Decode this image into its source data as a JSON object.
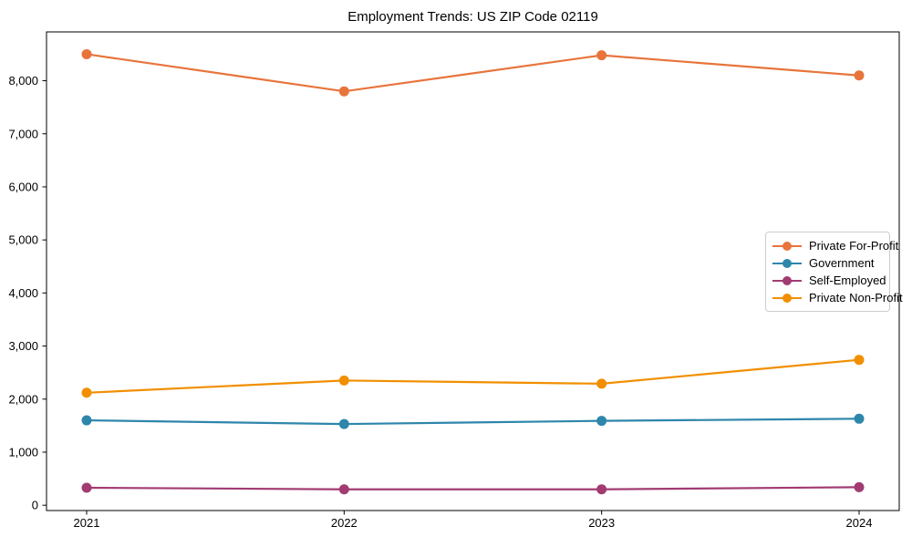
{
  "chart_data": {
    "type": "line",
    "title": "Employment Trends: US ZIP Code 02119",
    "xlabel": "",
    "ylabel": "",
    "categories": [
      "2021",
      "2022",
      "2023",
      "2024"
    ],
    "series": [
      {
        "name": "Private For-Profit",
        "color": "#E8743B",
        "values": [
          8500,
          7800,
          8480,
          8100
        ]
      },
      {
        "name": "Government",
        "color": "#2E86AB",
        "values": [
          1600,
          1530,
          1590,
          1630
        ]
      },
      {
        "name": "Self-Employed",
        "color": "#A23B72",
        "values": [
          330,
          300,
          300,
          340
        ]
      },
      {
        "name": "Private Non-Profit",
        "color": "#F18F01",
        "values": [
          2120,
          2350,
          2290,
          2740
        ]
      }
    ],
    "yticks": [
      {
        "value": 0,
        "label": "0"
      },
      {
        "value": 1000,
        "label": "1,000"
      },
      {
        "value": 2000,
        "label": "2,000"
      },
      {
        "value": 3000,
        "label": "3,000"
      },
      {
        "value": 4000,
        "label": "4,000"
      },
      {
        "value": 5000,
        "label": "5,000"
      },
      {
        "value": 6000,
        "label": "6,000"
      },
      {
        "value": 7000,
        "label": "7,000"
      },
      {
        "value": 8000,
        "label": "8,000"
      }
    ],
    "ylim": [
      -100,
      8920
    ],
    "grid": false,
    "legend_position": "center-right",
    "axis_color": "#000000",
    "marker": "circle"
  }
}
